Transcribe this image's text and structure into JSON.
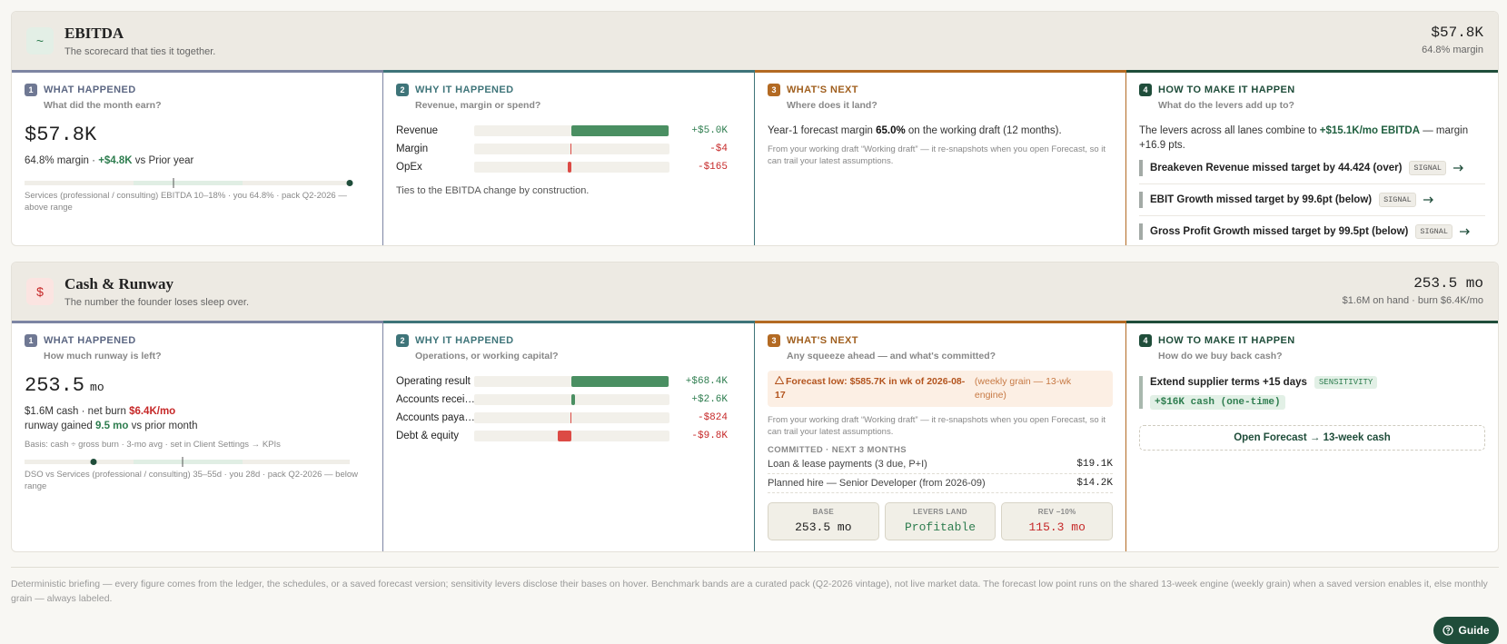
{
  "sections": [
    {
      "icon": "~",
      "title": "EBITDA",
      "subtitle": "The scorecard that ties it together.",
      "headline": "$57.8K",
      "headline_sub": "64.8% margin",
      "what": {
        "step": "1",
        "label": "WHAT HAPPENED",
        "question": "What did the month earn?",
        "big": "$57.8K",
        "line": [
          "64.8% margin · ",
          "+$4.8K",
          " vs Prior year"
        ],
        "benchmark": "Services (professional / consulting) EBITDA 10–18% · you 64.8% · pack Q2-2026 — above range"
      },
      "why": {
        "step": "2",
        "label": "WHY IT HAPPENED",
        "question": "Revenue, margin or spend?",
        "rows": [
          {
            "name": "Revenue",
            "value": 5000,
            "value_label": "+$5.0K"
          },
          {
            "name": "Margin",
            "value": -4,
            "value_label": "-$4"
          },
          {
            "name": "OpEx",
            "value": -165,
            "value_label": "-$165"
          }
        ],
        "note": "Ties to the EBITDA change by construction."
      },
      "next": {
        "step": "3",
        "label": "WHAT'S NEXT",
        "question": "Where does it land?",
        "text": [
          "Year-1 forecast margin ",
          "65.0%",
          " on the working draft (12 months)."
        ],
        "note": "From your working draft “Working draft” — it re-snapshots when you open Forecast, so it can trail your latest assumptions."
      },
      "how": {
        "step": "4",
        "label": "HOW TO MAKE IT HAPPEN",
        "question": "What do the levers add up to?",
        "text": [
          "The levers across all lanes combine to ",
          "+$15.1K/mo EBITDA",
          " — margin +16.9 pts."
        ],
        "levers": [
          {
            "text": "Breakeven Revenue missed target by 44.424 (over)",
            "tag": "SIGNAL"
          },
          {
            "text": "EBIT Growth missed target by 99.6pt (below)",
            "tag": "SIGNAL"
          },
          {
            "text": "Gross Profit Growth missed target by 99.5pt (below)",
            "tag": "SIGNAL"
          }
        ]
      }
    },
    {
      "icon": "$",
      "title": "Cash & Runway",
      "subtitle": "The number the founder loses sleep over.",
      "headline": "253.5 mo",
      "headline_sub": "$1.6M on hand · burn $6.4K/mo",
      "what": {
        "step": "1",
        "label": "WHAT HAPPENED",
        "question": "How much runway is left?",
        "big": "253.5",
        "big_unit": "mo",
        "lines": [
          [
            "$1.6M cash · net burn ",
            "$6.4K/mo"
          ],
          [
            "runway gained ",
            "9.5 mo",
            " vs prior month"
          ]
        ],
        "basis": "Basis: cash ÷ gross burn · 3-mo avg · set in Client Settings → KPIs",
        "benchmark": "DSO vs Services (professional / consulting) 35–55d · you 28d · pack Q2-2026 — below range"
      },
      "why": {
        "step": "2",
        "label": "WHY IT HAPPENED",
        "question": "Operations, or working capital?",
        "rows": [
          {
            "name": "Operating result",
            "value": 68400,
            "value_label": "+$68.4K"
          },
          {
            "name": "Accounts recei…",
            "value": 2600,
            "value_label": "+$2.6K"
          },
          {
            "name": "Accounts paya…",
            "value": -824,
            "value_label": "-$824"
          },
          {
            "name": "Debt & equity",
            "value": -9800,
            "value_label": "-$9.8K"
          }
        ]
      },
      "next": {
        "step": "3",
        "label": "WHAT'S NEXT",
        "question": "Any squeeze ahead — and what's committed?",
        "alert": "Forecast low: $585.7K in wk of 2026-08-17",
        "alert_note": "(weekly grain — 13-wk engine)",
        "note": "From your working draft “Working draft” — it re-snapshots when you open Forecast, so it can trail your latest assumptions.",
        "committed_title": "COMMITTED · NEXT 3 MONTHS",
        "committed": [
          [
            "Loan & lease payments (3 due, P+I)",
            "$19.1K"
          ],
          [
            "Planned hire — Senior Developer (from 2026-09)",
            "$14.2K"
          ]
        ],
        "scenarios": [
          {
            "label": "BASE",
            "value": "253.5 mo"
          },
          {
            "label": "LEVERS LAND",
            "value": "Profitable"
          },
          {
            "label": "REV −10%",
            "value": "115.3 mo"
          }
        ]
      },
      "how": {
        "step": "4",
        "label": "HOW TO MAKE IT HAPPEN",
        "question": "How do we buy back cash?",
        "levers": [
          {
            "text": "Extend supplier terms +15 days",
            "tag": "SENSITIVITY",
            "impact": "+$16K cash (one-time)"
          }
        ],
        "button": "Open Forecast → 13-week cash"
      }
    }
  ],
  "footer": "Deterministic briefing — every figure comes from the ledger, the schedules, or a saved forecast version; sensitivity levers disclose their bases on hover. Benchmark bands are a curated pack (Q2-2026 vintage), not live market data. The forecast low point runs on the shared 13-week engine (weekly grain) when a saved version enables it, else monthly grain — always labeled.",
  "guide": "Guide"
}
